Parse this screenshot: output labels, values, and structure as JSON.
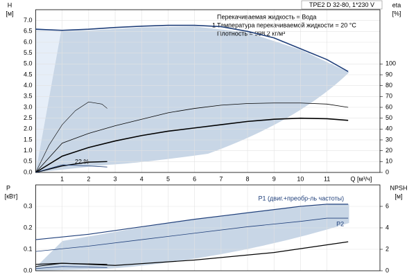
{
  "chart_data": [
    {
      "type": "line",
      "title": "TPE2 D 32-80, 1*230 V",
      "y_label": "H",
      "y_unit": "[м]",
      "y2_label": "eta",
      "y2_unit": "[%]",
      "x_label": "Q [м³/ч]",
      "annotations": [
        "Перекачиваемая жидкость = Вода",
        "1",
        "Температура перекачиваемой жидкости = 20 °C",
        "Плотность = 998.2 кг/м³",
        "22 %"
      ],
      "xlim": [
        0,
        13
      ],
      "xticks": [
        1,
        2,
        3,
        4,
        5,
        6,
        7,
        8,
        9,
        10,
        11
      ],
      "ylim": [
        0,
        7.5
      ],
      "yticks": [
        {
          "value": 0,
          "label": "0.0"
        },
        {
          "value": 0.5,
          "label": "0.5"
        },
        {
          "value": 1,
          "label": "1.0"
        },
        {
          "value": 1.5,
          "label": "1.5"
        },
        {
          "value": 2,
          "label": "2.0"
        },
        {
          "value": 2.5,
          "label": "2.5"
        },
        {
          "value": 3,
          "label": "3.0"
        },
        {
          "value": 3.5,
          "label": "3.5"
        },
        {
          "value": 4,
          "label": "4.0"
        },
        {
          "value": 4.5,
          "label": "4.5"
        },
        {
          "value": 5,
          "label": "5.0"
        },
        {
          "value": 5.5,
          "label": "5.5"
        },
        {
          "value": 6,
          "label": "6.0"
        },
        {
          "value": 6.5,
          "label": "6.5"
        },
        {
          "value": 7,
          "label": "7.0"
        }
      ],
      "y2lim": [
        0,
        150
      ],
      "y2ticks": [
        0,
        10,
        20,
        30,
        40,
        50,
        60,
        70,
        80,
        90,
        100
      ],
      "grid": true,
      "series": [
        {
          "color": "#1f3f7a",
          "linewidth": 1.6,
          "x": [
            0,
            1,
            2,
            3,
            4,
            5,
            6,
            7,
            8,
            9,
            10,
            11,
            11.8
          ],
          "values": [
            6.6,
            6.55,
            6.6,
            6.68,
            6.74,
            6.78,
            6.78,
            6.72,
            6.5,
            6.2,
            5.7,
            5.2,
            4.65
          ]
        },
        {
          "color": "#000000",
          "linewidth": 1.6,
          "axis": "y2",
          "x": [
            0,
            1,
            2,
            3,
            4,
            5,
            6,
            7,
            8,
            9,
            10,
            11,
            11.8
          ],
          "values": [
            0,
            15,
            23,
            29,
            34,
            38,
            41,
            44,
            47,
            49,
            50,
            49.5,
            48
          ]
        },
        {
          "color": "#000000",
          "linewidth": 0.8,
          "axis": "y2",
          "x": [
            0,
            1,
            2,
            3,
            4,
            5,
            6,
            7,
            8,
            9,
            10,
            11,
            11.8
          ],
          "values": [
            0,
            27,
            36,
            43,
            49,
            55,
            59,
            62,
            63.5,
            64,
            64,
            63,
            60
          ]
        },
        {
          "color": "#000000",
          "linewidth": 0.6,
          "axis": "y2",
          "x": [
            0,
            0.5,
            1,
            1.5,
            2,
            2.5,
            2.7
          ],
          "values": [
            0,
            25,
            44,
            57,
            65,
            63,
            59
          ]
        },
        {
          "color": "#000000",
          "linewidth": 1.4,
          "axis": "y2",
          "x": [
            0,
            1,
            2,
            2.7
          ],
          "values": [
            0,
            6,
            9.5,
            10
          ]
        },
        {
          "color": "#1f3f7a",
          "linewidth": 0.8,
          "axis": "y2",
          "x": [
            0,
            1,
            2,
            2.7
          ],
          "values": [
            0,
            7,
            6,
            5
          ]
        }
      ]
    },
    {
      "type": "line",
      "y_label": "P",
      "y_unit": "[кВт]",
      "y2_label": "NPSH",
      "y2_unit": "[м]",
      "xlim": [
        0,
        13
      ],
      "xticks": [
        1,
        2,
        3,
        4,
        5,
        6,
        7,
        8,
        9,
        10,
        11
      ],
      "ylim": [
        0,
        0.4
      ],
      "yticks": [
        {
          "value": 0,
          "label": "0.0"
        },
        {
          "value": 0.1,
          "label": "0.1"
        },
        {
          "value": 0.2,
          "label": "0.2"
        },
        {
          "value": 0.3,
          "label": "0.3"
        }
      ],
      "y2lim": [
        0,
        8
      ],
      "y2ticks": [
        0,
        2,
        4,
        6
      ],
      "grid": true,
      "series": [
        {
          "name": "P1 (двиг.+преобр-ль частоты)",
          "color": "#1f3f7a",
          "linewidth": 1.2,
          "x": [
            0,
            2,
            4,
            6,
            8,
            10,
            11,
            11.8
          ],
          "values": [
            0.145,
            0.17,
            0.205,
            0.24,
            0.27,
            0.3,
            0.31,
            0.31
          ]
        },
        {
          "name": "P2",
          "color": "#1f3f7a",
          "linewidth": 0.8,
          "x": [
            0,
            2,
            4,
            6,
            8,
            10,
            11,
            11.8
          ],
          "values": [
            0.09,
            0.115,
            0.145,
            0.175,
            0.205,
            0.23,
            0.245,
            0.245
          ]
        },
        {
          "color": "#000000",
          "linewidth": 1.2,
          "axis": "y2",
          "x": [
            0,
            1,
            3,
            6,
            9,
            11.8
          ],
          "values": [
            0.6,
            0.7,
            0.5,
            1.0,
            1.7,
            2.7
          ]
        },
        {
          "color": "#000000",
          "linewidth": 1,
          "x": [
            0,
            1,
            2.7
          ],
          "values": [
            0.02,
            0.035,
            0.03
          ]
        },
        {
          "color": "#1f3f7a",
          "linewidth": 0.8,
          "x": [
            0,
            1,
            2.7
          ],
          "values": [
            0.01,
            0.02,
            0.015
          ]
        }
      ]
    }
  ]
}
